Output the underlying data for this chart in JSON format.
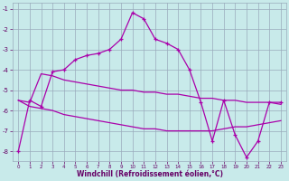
{
  "line1_x": [
    0,
    1,
    2,
    3,
    4,
    5,
    6,
    7,
    8,
    9,
    10,
    11,
    12,
    13,
    14,
    15,
    16,
    17,
    18,
    19,
    20,
    21,
    22,
    23
  ],
  "line1_y": [
    -8.0,
    -5.5,
    -5.8,
    -4.1,
    -4.0,
    -3.5,
    -3.3,
    -3.2,
    -3.0,
    -2.5,
    -1.2,
    -1.5,
    -2.5,
    -2.7,
    -3.0,
    -4.0,
    -5.6,
    -7.5,
    -5.5,
    -7.2,
    -8.3,
    -7.5,
    -5.6,
    -5.6
  ],
  "line2_x": [
    0,
    1,
    2,
    3,
    4,
    5,
    6,
    7,
    8,
    9,
    10,
    11,
    12,
    13,
    14,
    15,
    16,
    17,
    18,
    19,
    20,
    21,
    22,
    23
  ],
  "line2_y": [
    -5.5,
    -5.6,
    -4.2,
    -4.3,
    -4.5,
    -4.6,
    -4.7,
    -4.8,
    -4.9,
    -5.0,
    -5.0,
    -5.1,
    -5.1,
    -5.2,
    -5.2,
    -5.3,
    -5.4,
    -5.4,
    -5.5,
    -5.5,
    -5.6,
    -5.6,
    -5.6,
    -5.7
  ],
  "line3_x": [
    0,
    1,
    2,
    3,
    4,
    5,
    6,
    7,
    8,
    9,
    10,
    11,
    12,
    13,
    14,
    15,
    16,
    17,
    18,
    19,
    20,
    21,
    22,
    23
  ],
  "line3_y": [
    -5.5,
    -5.8,
    -5.9,
    -6.0,
    -6.2,
    -6.3,
    -6.4,
    -6.5,
    -6.6,
    -6.7,
    -6.8,
    -6.9,
    -6.9,
    -7.0,
    -7.0,
    -7.0,
    -7.0,
    -7.0,
    -6.9,
    -6.8,
    -6.8,
    -6.7,
    -6.6,
    -6.5
  ],
  "line_color": "#aa00aa",
  "bg_color": "#c8eaea",
  "grid_color": "#99aabb",
  "xlabel": "Windchill (Refroidissement éolien,°C)",
  "xlabel_color": "#660066",
  "tick_color": "#660066",
  "ylim": [
    -8.5,
    -0.7
  ],
  "xlim": [
    -0.5,
    23.5
  ],
  "yticks": [
    -8,
    -7,
    -6,
    -5,
    -4,
    -3,
    -2,
    -1
  ],
  "xticks": [
    0,
    1,
    2,
    3,
    4,
    5,
    6,
    7,
    8,
    9,
    10,
    11,
    12,
    13,
    14,
    15,
    16,
    17,
    18,
    19,
    20,
    21,
    22,
    23
  ]
}
